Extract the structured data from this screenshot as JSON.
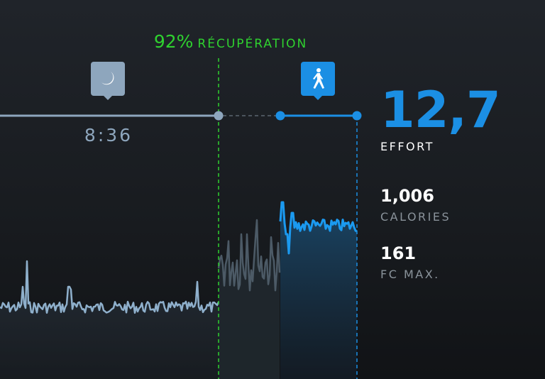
{
  "recovery": {
    "percent": "92%",
    "label": "RÉCUPÉRATION",
    "color": "#2fd12f"
  },
  "sleep": {
    "icon": "moon-icon",
    "duration": "8:36",
    "color": "#8ea6bd"
  },
  "activity": {
    "icon": "walking-person-icon",
    "color": "#1b8fe4"
  },
  "stats": {
    "effort": {
      "value": "12,7",
      "label": "EFFORT"
    },
    "calories": {
      "value": "1,006",
      "label": "CALORIES"
    },
    "max_hr": {
      "value": "161",
      "label": "FC MAX."
    }
  }
}
